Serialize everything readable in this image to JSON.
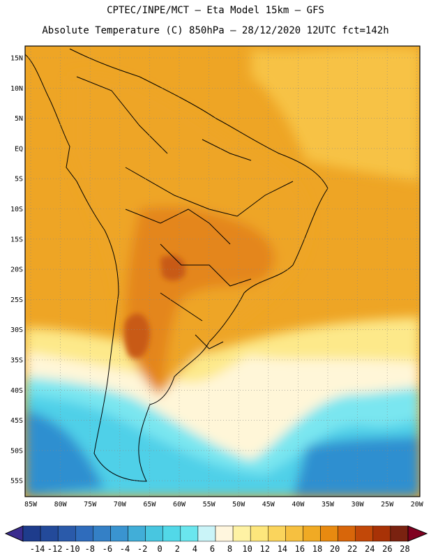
{
  "header": {
    "line1": "CPTEC/INPE/MCT –  Eta Model 15km – GFS",
    "line2": "Absolute Temperature (C) 850hPa – 28/12/2020 12UTC fct=142h"
  },
  "map": {
    "lat_labels": [
      "15N",
      "10N",
      "5N",
      "EQ",
      "5S",
      "10S",
      "15S",
      "20S",
      "25S",
      "30S",
      "35S",
      "40S",
      "45S",
      "50S",
      "55S"
    ],
    "lon_labels": [
      "85W",
      "80W",
      "75W",
      "70W",
      "65W",
      "60W",
      "55W",
      "50W",
      "45W",
      "40W",
      "35W",
      "30W",
      "25W",
      "20W"
    ],
    "colors": {
      "ocean_dark": "#1e3c8c",
      "ocean_mid": "#2f8fd0",
      "ocean_light": "#4fd0e8",
      "cyan": "#7ae6f0",
      "pale": "#fff6d8",
      "yellow": "#fde98a",
      "gold": "#f7c244",
      "orange": "#eea525",
      "dark_orange": "#e4861c",
      "hot": "#c85a14"
    }
  },
  "colorbar": {
    "labels": [
      "-14",
      "-12",
      "-10",
      "-8",
      "-6",
      "-4",
      "-2",
      "0",
      "2",
      "4",
      "6",
      "8",
      "10",
      "12",
      "14",
      "16",
      "18",
      "20",
      "22",
      "24",
      "26",
      "28"
    ],
    "colors": [
      "#1e3c8c",
      "#234a9a",
      "#2a5aaa",
      "#2f6cbc",
      "#3480c6",
      "#3a94d0",
      "#41aed8",
      "#48c6e0",
      "#52d8e8",
      "#6ae6ee",
      "#caf4f8",
      "#fff6de",
      "#fef2a4",
      "#fde67c",
      "#fad45c",
      "#f6c040",
      "#f0aa24",
      "#e88a10",
      "#d8660a",
      "#c24808",
      "#a83206",
      "#7a2210"
    ],
    "left_arrow_color": "#3a2c8e",
    "right_arrow_color": "#800020"
  }
}
